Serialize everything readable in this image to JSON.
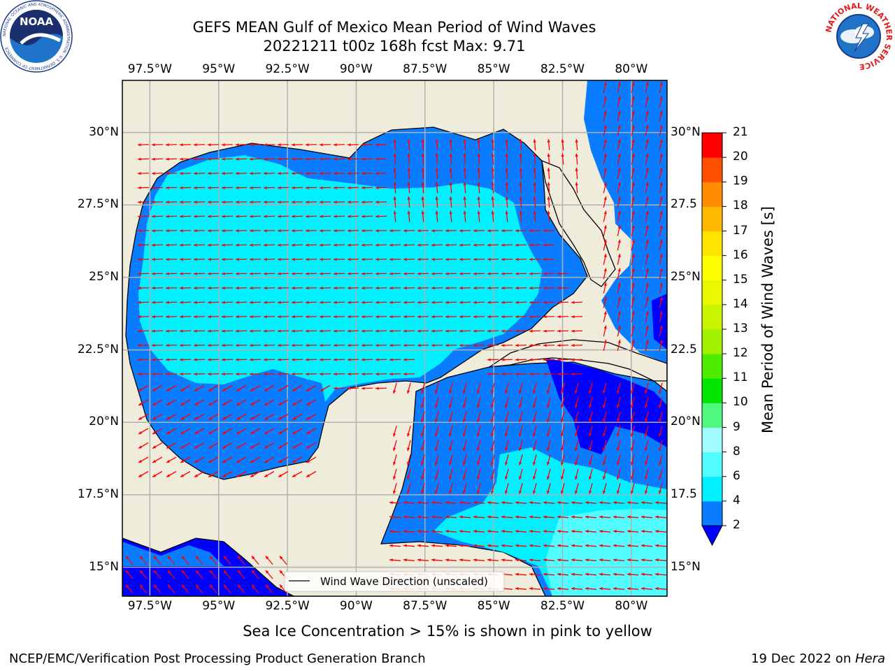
{
  "header": {
    "title_line1": "GEFS MEAN Gulf of Mexico Mean Period of Wind Waves",
    "title_line2": "20221211 t00z 168h fcst   Max: 9.71"
  },
  "logos": {
    "noaa": {
      "wordmark": "NOAA",
      "ring_text": "NATIONAL OCEANIC AND ATMOSPHERIC ADMINISTRATION · U.S. DEPARTMENT OF COMMERCE"
    },
    "nws": {
      "ring_text": "NATIONAL WEATHER SERVICE"
    }
  },
  "map": {
    "lon_range": [
      -98.5,
      -78.7
    ],
    "lat_range": [
      14.0,
      31.8
    ],
    "grid": true,
    "lon_ticks": [
      "97.5°W",
      "95°W",
      "92.5°W",
      "90°W",
      "87.5°W",
      "85°W",
      "82.5°W",
      "80°W"
    ],
    "lon_tick_values": [
      -97.5,
      -95,
      -92.5,
      -90,
      -87.5,
      -85,
      -82.5,
      -80
    ],
    "lat_ticks": [
      "15°N",
      "17.5°N",
      "20°N",
      "22.5°N",
      "25°N",
      "27.5°N",
      "30°N"
    ],
    "lat_tick_values": [
      15,
      17.5,
      20,
      22.5,
      25,
      27.5,
      30
    ],
    "lat_ticks_right": [
      "15°N",
      "17.5",
      "20°N",
      "22.5",
      "25°N",
      "27.5",
      "30°N"
    ],
    "legend_label": "Wind Wave Direction (unscaled)",
    "colors": {
      "land": "#efecdc",
      "ocean_2_4": "#0a7cff",
      "ocean_4_6": "#00f0ff",
      "ocean_0_2": "#0000ff",
      "ocean_6_8": "#50fcff",
      "arrow": "#ff0000",
      "grid": "#b0b0b0"
    }
  },
  "colorbar": {
    "label": "Mean Period of Wind Waves [s]",
    "ticks": [
      "2",
      "4",
      "6",
      "8",
      "9",
      "10",
      "11",
      "12",
      "13",
      "14",
      "15",
      "16",
      "17",
      "18",
      "19",
      "20",
      "21"
    ],
    "colors": [
      "#0a7cff",
      "#00f0ff",
      "#50fcff",
      "#a0fcff",
      "#50f880",
      "#00e400",
      "#50ec00",
      "#a0f000",
      "#c8f400",
      "#e8f800",
      "#ffff00",
      "#ffe400",
      "#ffb800",
      "#ff8c00",
      "#ff5000",
      "#ff0000"
    ],
    "extend_color": "#0000ff"
  },
  "footer": {
    "sea_ice_note": "Sea Ice Concentration > 15% is shown in pink to yellow",
    "credit": "NCEP/EMC/Verification Post Processing Product Generation Branch",
    "date_prefix": "19 Dec 2022 on ",
    "host": "Hera"
  }
}
